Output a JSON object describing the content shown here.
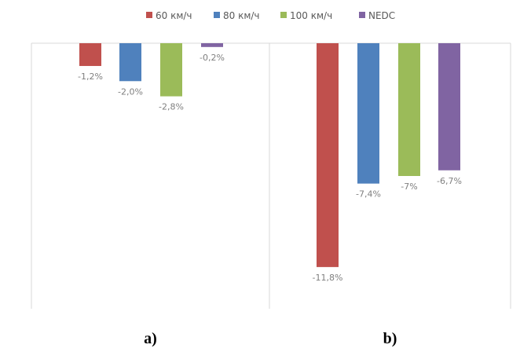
{
  "chart_data": [
    {
      "type": "bar",
      "panel_label": "a)",
      "categories": [
        "60 км/ч",
        "80 км/ч",
        "100 км/ч",
        "NEDC"
      ],
      "values": [
        -1.2,
        -2.0,
        -2.8,
        -0.2
      ],
      "data_labels": [
        "-1,2%",
        "-2,0%",
        "-2,8%",
        "-0,2%"
      ],
      "ylim": [
        -14,
        0
      ],
      "grid": false,
      "legend": "top"
    },
    {
      "type": "bar",
      "panel_label": "b)",
      "categories": [
        "60 км/ч",
        "80 км/ч",
        "100 км/ч",
        "NEDC"
      ],
      "values": [
        -11.8,
        -7.4,
        -7.0,
        -6.7
      ],
      "data_labels": [
        "-11,8%",
        "-7,4%",
        "-7%",
        "-6,7%"
      ],
      "ylim": [
        -14,
        0
      ],
      "grid": false,
      "legend": "top"
    }
  ],
  "legend": [
    "60 км/ч",
    "80 км/ч",
    "100 км/ч",
    "NEDC"
  ],
  "colors": [
    "#c0504d",
    "#4f81bd",
    "#9bbb59",
    "#8064a2"
  ]
}
